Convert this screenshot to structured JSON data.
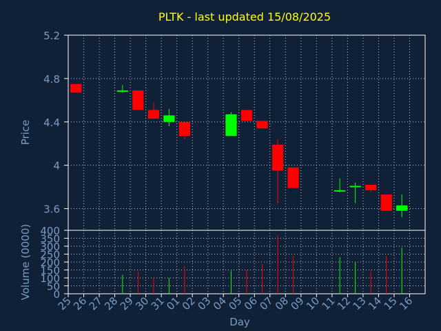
{
  "chart_data": {
    "type": "candlestick",
    "title": "PLTK - last updated 15/08/2025",
    "xlabel": "Day",
    "colors": {
      "background": "#0f2037",
      "up": "#00ff00",
      "down": "#ff0000",
      "grid": "#ffffff",
      "axis_text": "#7b9cc2",
      "title": "#ffff00"
    },
    "price_panel": {
      "ylabel": "Price",
      "ylim": [
        3.4,
        5.2
      ],
      "yticks": [
        5.2,
        4.8,
        4.4,
        4.0,
        3.6
      ],
      "ytick_labels": [
        "5.2",
        "4.8",
        "4.4",
        "4",
        "3.6"
      ]
    },
    "volume_panel": {
      "ylabel": "Volume (0000)",
      "ylim": [
        0,
        400
      ],
      "yticks": [
        400,
        350,
        300,
        250,
        200,
        150,
        100,
        50,
        0
      ],
      "ytick_labels": [
        "400",
        "350",
        "300",
        "250",
        "200",
        "150",
        "100",
        "50",
        "0"
      ]
    },
    "x_labels": [
      "25",
      "26",
      "27",
      "28",
      "29",
      "30",
      "31",
      "01",
      "02",
      "03",
      "04",
      "05",
      "06",
      "07",
      "08",
      "09",
      "10",
      "11",
      "12",
      "13",
      "14",
      "15",
      "16"
    ],
    "candles": [
      {
        "day": "25",
        "open": 4.75,
        "high": 4.75,
        "low": 4.67,
        "close": 4.67,
        "volume": null
      },
      {
        "day": "28",
        "open": 4.68,
        "high": 4.74,
        "low": 4.67,
        "close": 4.69,
        "volume": 120
      },
      {
        "day": "29",
        "open": 4.69,
        "high": 4.69,
        "low": 4.51,
        "close": 4.51,
        "volume": 140
      },
      {
        "day": "30",
        "open": 4.51,
        "high": 4.58,
        "low": 4.43,
        "close": 4.43,
        "volume": 100
      },
      {
        "day": "31",
        "open": 4.4,
        "high": 4.52,
        "low": 4.36,
        "close": 4.46,
        "volume": 100
      },
      {
        "day": "01",
        "open": 4.4,
        "high": 4.4,
        "low": 4.24,
        "close": 4.27,
        "volume": 175
      },
      {
        "day": "04",
        "open": 4.27,
        "high": 4.49,
        "low": 4.27,
        "close": 4.47,
        "volume": 145
      },
      {
        "day": "05",
        "open": 4.51,
        "high": 4.51,
        "low": 4.41,
        "close": 4.41,
        "volume": 150
      },
      {
        "day": "06",
        "open": 4.41,
        "high": 4.41,
        "low": 4.34,
        "close": 4.34,
        "volume": 190
      },
      {
        "day": "07",
        "open": 4.19,
        "high": 4.24,
        "low": 3.65,
        "close": 3.95,
        "volume": 370
      },
      {
        "day": "08",
        "open": 3.98,
        "high": 3.98,
        "low": 3.79,
        "close": 3.79,
        "volume": 240
      },
      {
        "day": "11",
        "open": 3.76,
        "high": 3.88,
        "low": 3.75,
        "close": 3.77,
        "volume": 230
      },
      {
        "day": "12",
        "open": 3.8,
        "high": 3.84,
        "low": 3.65,
        "close": 3.81,
        "volume": 200
      },
      {
        "day": "13",
        "open": 3.82,
        "high": 3.82,
        "low": 3.75,
        "close": 3.77,
        "volume": 145
      },
      {
        "day": "14",
        "open": 3.73,
        "high": 3.73,
        "low": 3.58,
        "close": 3.58,
        "volume": 240
      },
      {
        "day": "15",
        "open": 3.58,
        "high": 3.73,
        "low": 3.52,
        "close": 3.63,
        "volume": 290
      }
    ]
  }
}
